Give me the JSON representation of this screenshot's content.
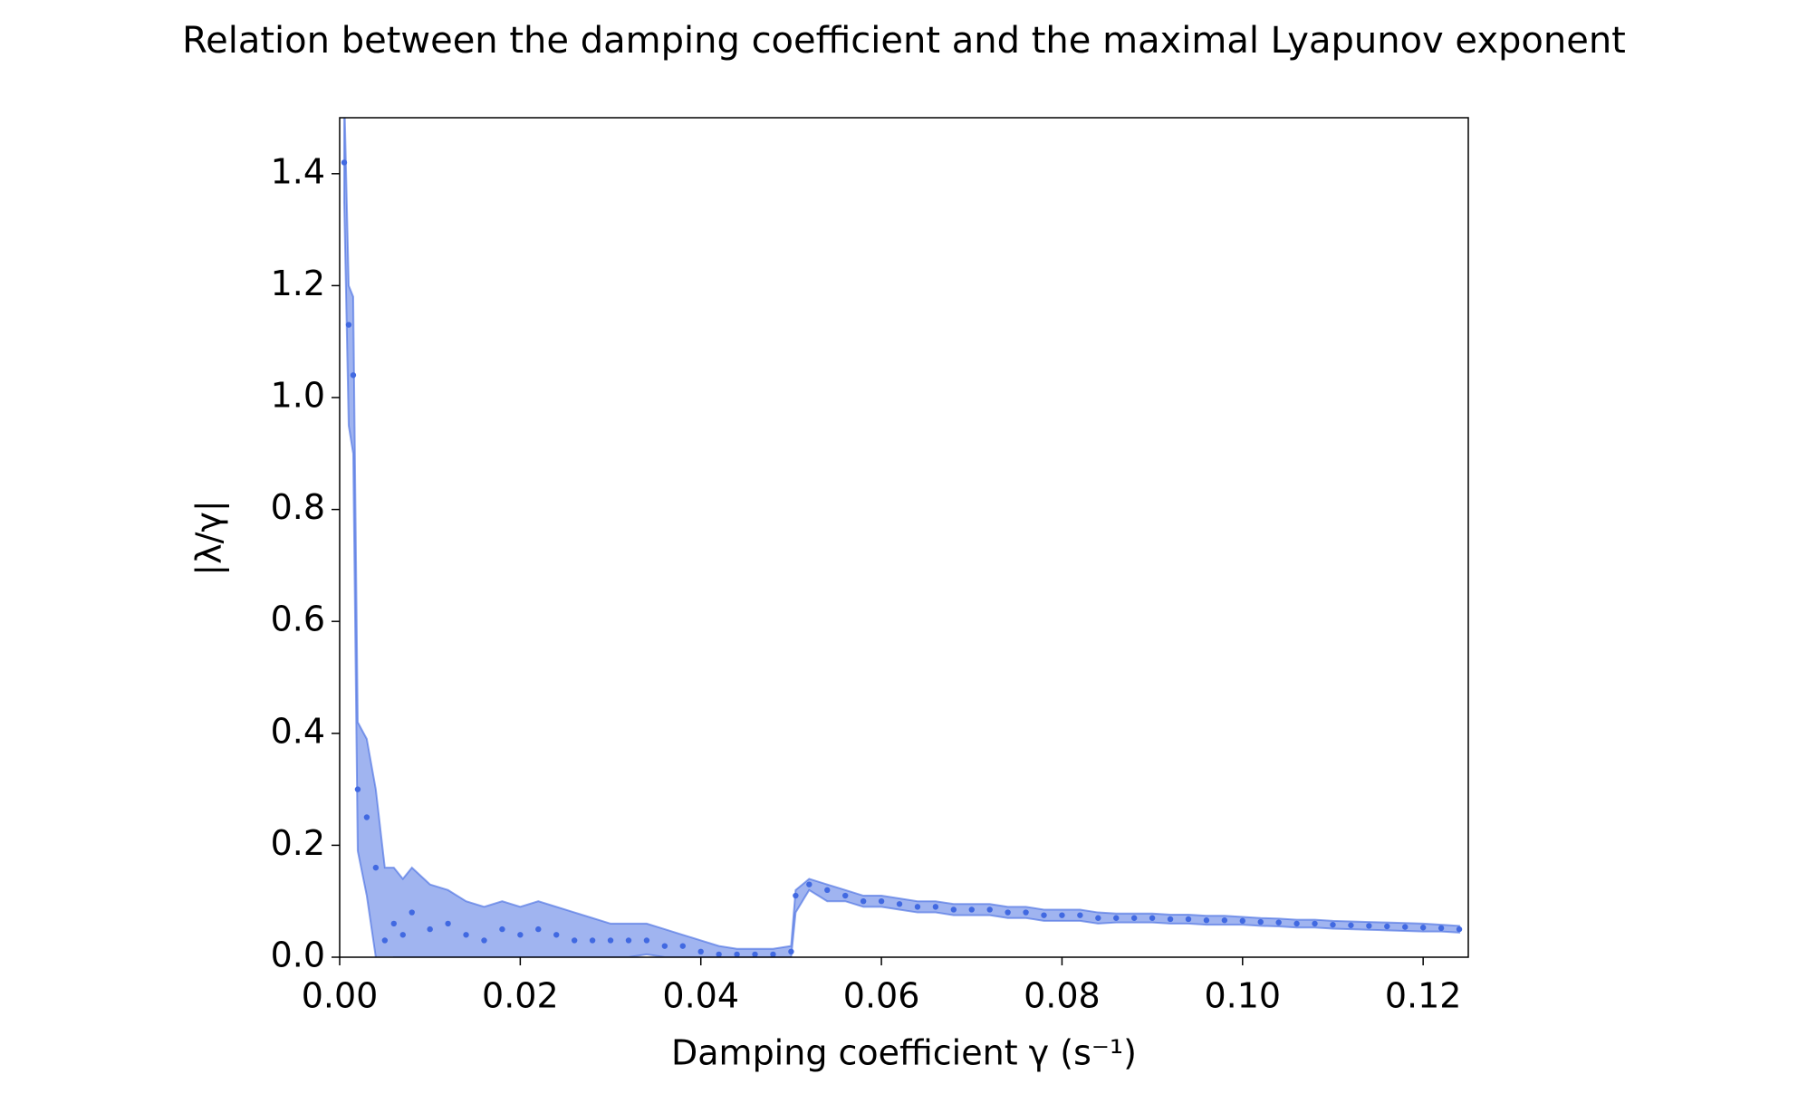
{
  "chart_data": {
    "type": "scatter",
    "title": "Relation between the damping coefficient and the maximal Lyapunov exponent",
    "x_label": "Damping coefficient γ (s⁻¹)",
    "y_label": "|λ/γ|",
    "color": "#4169e1",
    "band_color": "#4169e1",
    "x": [
      0.0005,
      0.001,
      0.0015,
      0.002,
      0.003,
      0.004,
      0.005,
      0.006,
      0.007,
      0.008,
      0.01,
      0.012,
      0.014,
      0.016,
      0.018,
      0.02,
      0.022,
      0.024,
      0.026,
      0.028,
      0.03,
      0.032,
      0.034,
      0.036,
      0.038,
      0.04,
      0.042,
      0.044,
      0.046,
      0.048,
      0.05,
      0.0505,
      0.052,
      0.054,
      0.056,
      0.058,
      0.06,
      0.062,
      0.064,
      0.066,
      0.068,
      0.07,
      0.072,
      0.074,
      0.076,
      0.078,
      0.08,
      0.082,
      0.084,
      0.086,
      0.088,
      0.09,
      0.092,
      0.094,
      0.096,
      0.098,
      0.1,
      0.102,
      0.104,
      0.106,
      0.108,
      0.11,
      0.112,
      0.114,
      0.116,
      0.118,
      0.12,
      0.122,
      0.124
    ],
    "values": [
      1.42,
      1.13,
      1.04,
      0.3,
      0.25,
      0.16,
      0.03,
      0.06,
      0.04,
      0.08,
      0.05,
      0.06,
      0.04,
      0.03,
      0.05,
      0.04,
      0.05,
      0.04,
      0.03,
      0.03,
      0.03,
      0.03,
      0.03,
      0.02,
      0.02,
      0.01,
      0.005,
      0.005,
      0.005,
      0.005,
      0.01,
      0.11,
      0.13,
      0.12,
      0.11,
      0.1,
      0.1,
      0.095,
      0.09,
      0.09,
      0.085,
      0.085,
      0.085,
      0.08,
      0.08,
      0.075,
      0.075,
      0.075,
      0.07,
      0.07,
      0.07,
      0.07,
      0.068,
      0.068,
      0.066,
      0.066,
      0.065,
      0.063,
      0.062,
      0.06,
      0.06,
      0.058,
      0.057,
      0.056,
      0.055,
      0.054,
      0.053,
      0.052,
      0.05
    ],
    "upper": [
      1.55,
      1.2,
      1.18,
      0.42,
      0.39,
      0.3,
      0.16,
      0.16,
      0.14,
      0.16,
      0.13,
      0.12,
      0.1,
      0.09,
      0.1,
      0.09,
      0.1,
      0.09,
      0.08,
      0.07,
      0.06,
      0.06,
      0.06,
      0.05,
      0.04,
      0.03,
      0.02,
      0.015,
      0.015,
      0.015,
      0.02,
      0.12,
      0.14,
      0.13,
      0.12,
      0.11,
      0.11,
      0.105,
      0.1,
      0.1,
      0.095,
      0.095,
      0.095,
      0.09,
      0.09,
      0.085,
      0.085,
      0.085,
      0.08,
      0.078,
      0.078,
      0.078,
      0.076,
      0.076,
      0.074,
      0.074,
      0.072,
      0.07,
      0.069,
      0.067,
      0.067,
      0.065,
      0.064,
      0.063,
      0.062,
      0.061,
      0.06,
      0.058,
      0.056
    ],
    "lower": [
      1.35,
      0.95,
      0.9,
      0.19,
      0.11,
      0.0,
      -0.1,
      0,
      0,
      0,
      0,
      0,
      0,
      0,
      0,
      0,
      0,
      0,
      0,
      0,
      0,
      0,
      0.005,
      0,
      0,
      0,
      0,
      0,
      0,
      0,
      0,
      0.08,
      0.12,
      0.1,
      0.1,
      0.09,
      0.09,
      0.085,
      0.08,
      0.08,
      0.075,
      0.075,
      0.075,
      0.07,
      0.07,
      0.065,
      0.065,
      0.065,
      0.06,
      0.062,
      0.062,
      0.062,
      0.06,
      0.06,
      0.058,
      0.058,
      0.058,
      0.056,
      0.055,
      0.053,
      0.053,
      0.051,
      0.05,
      0.049,
      0.048,
      0.047,
      0.046,
      0.046,
      0.044
    ],
    "xlim": [
      0,
      0.125
    ],
    "ylim": [
      0,
      1.5
    ],
    "xticks": [
      {
        "value": 0,
        "label": "0.00"
      },
      {
        "value": 0.02,
        "label": "0.02"
      },
      {
        "value": 0.04,
        "label": "0.04"
      },
      {
        "value": 0.06,
        "label": "0.06"
      },
      {
        "value": 0.08,
        "label": "0.08"
      },
      {
        "value": 0.1,
        "label": "0.10"
      },
      {
        "value": 0.12,
        "label": "0.12"
      }
    ],
    "yticks": [
      {
        "value": 0,
        "label": "0.0"
      },
      {
        "value": 0.2,
        "label": "0.2"
      },
      {
        "value": 0.4,
        "label": "0.4"
      },
      {
        "value": 0.6,
        "label": "0.6"
      },
      {
        "value": 0.8,
        "label": "0.8"
      },
      {
        "value": 1.0,
        "label": "1.0"
      },
      {
        "value": 1.2,
        "label": "1.2"
      },
      {
        "value": 1.4,
        "label": "1.4"
      }
    ],
    "grid": false
  }
}
